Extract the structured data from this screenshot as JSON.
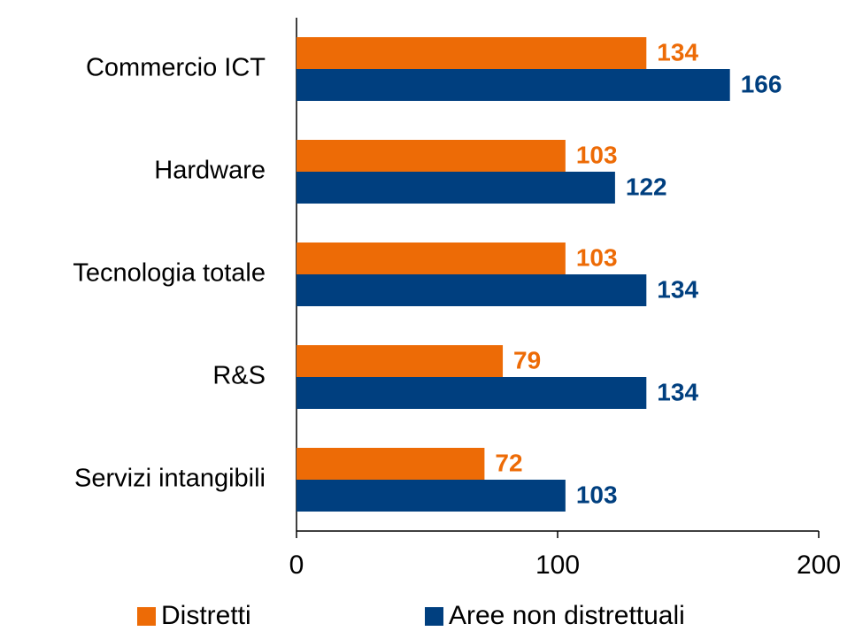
{
  "chart_data": {
    "type": "bar",
    "orientation": "horizontal",
    "categories": [
      "Commercio ICT",
      "Hardware",
      "Tecnologia totale",
      "R&S",
      "Servizi intangibili"
    ],
    "series": [
      {
        "name": "Distretti",
        "color": "#ed6b06",
        "values": [
          134,
          103,
          103,
          79,
          72
        ]
      },
      {
        "name": "Aree non distrettuali",
        "color": "#003f7f",
        "values": [
          166,
          122,
          134,
          134,
          103
        ]
      }
    ],
    "xlim": [
      0,
      200
    ],
    "xticks": [
      0,
      100,
      200
    ],
    "grid": false,
    "legend": "bottom"
  }
}
